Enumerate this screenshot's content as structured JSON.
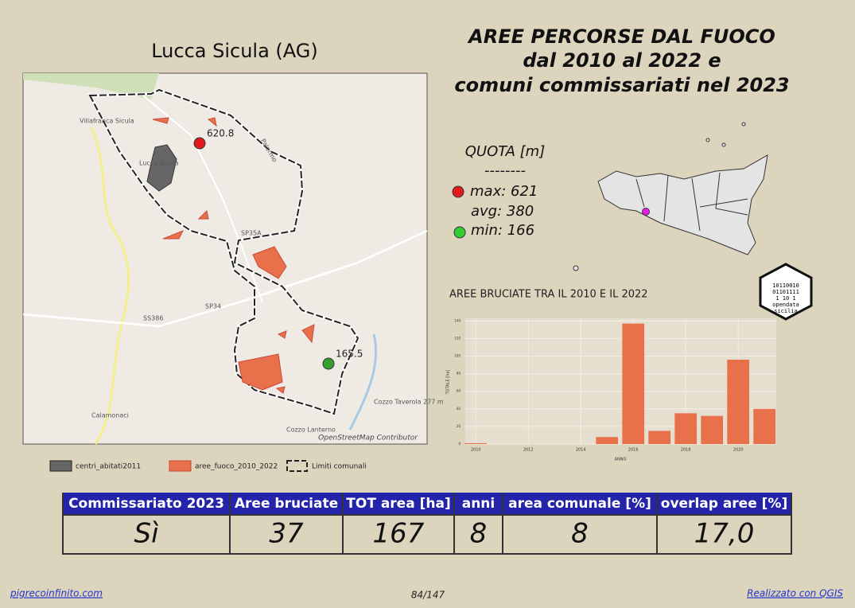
{
  "map": {
    "title": "Lucca Sicula (AG)",
    "points": [
      {
        "label": "620.8",
        "color": "#e31a1c"
      },
      {
        "label": "165.5",
        "color": "#33a02c"
      }
    ],
    "places": [
      "Villafranca Sicula",
      "Lucca Sicula",
      "Calamonaci",
      "SP35A",
      "SP34",
      "SS386",
      "Cozzo Taverola 277 m",
      "Cozzo Lanterno",
      "Palermo"
    ],
    "attribution": "OpenStreetMap Contributor"
  },
  "legend": [
    "centri_abitati2011",
    "aree_fuoco_2010_2022",
    "Limiti comunali"
  ],
  "title": [
    "AREE PERCORSE DAL FUOCO",
    "dal 2010 al 2022 e",
    "comuni commissariati nel 2023"
  ],
  "quota": {
    "header": "QUOTA [m]",
    "separator": "--------",
    "max": "max: 621",
    "avg": "avg: 380",
    "min": "min: 166"
  },
  "logo": {
    "bits": [
      "10110010",
      "01101111",
      "1   10 1"
    ],
    "line1": "opendata",
    "line2": "sicilia"
  },
  "chart_data": {
    "type": "bar",
    "title": "AREE BRUCIATE TRA IL 2010 E IL 2022",
    "x_label": "ANNO",
    "y_label": "TOTALE [ha]",
    "x": [
      2010,
      2015,
      2016,
      2017,
      2018,
      2019,
      2020,
      2021
    ],
    "values": [
      1,
      8,
      137,
      15,
      35,
      32,
      96,
      40
    ],
    "color": "#e8714c",
    "xlim": [
      2009.6,
      2021.45
    ],
    "xticks": [
      2010,
      2012,
      2014,
      2016,
      2018,
      2020
    ],
    "ylim": [
      0,
      143
    ],
    "yticks": [
      0,
      20,
      40,
      60,
      80,
      100,
      120,
      140
    ],
    "grid": true
  },
  "table": {
    "headers": [
      "Commissariato 2023",
      "Aree bruciate",
      "TOT area [ha]",
      "anni",
      "area comunale [%]",
      "overlap aree [%]"
    ],
    "rows": [
      [
        "Sì",
        "37",
        "167",
        "8",
        "8",
        "17,0"
      ]
    ]
  },
  "footer": {
    "left": "pigrecoinfinito.com",
    "center": "84/147",
    "right": "Realizzato con QGIS"
  }
}
